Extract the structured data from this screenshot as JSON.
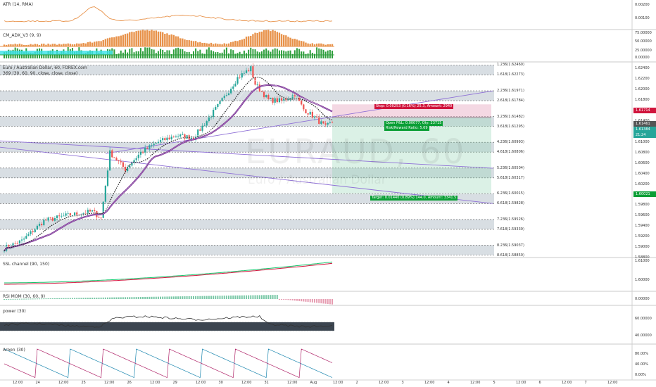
{
  "panels": {
    "atr": {
      "title": "ATR (14, RMA)",
      "ticks": [
        "0.00200",
        "0.00100"
      ]
    },
    "adx": {
      "title": "CM_ADX_V3 (9, 9)",
      "ticks": [
        "75.00000",
        "50.00000",
        "25.00000",
        "0.00000"
      ]
    },
    "ssl": {
      "title": "SSL channel (90, 150)",
      "ticks": [
        "1.61000",
        "1.60000"
      ]
    },
    "rsi": {
      "title": "RSI MOM (30, 60, 9)",
      "ticks": [
        "0.00000"
      ]
    },
    "power": {
      "title": "power (30)",
      "ticks": [
        "60.00000",
        "40.00000"
      ]
    },
    "aroon": {
      "title": "Aroon (30)",
      "ticks": [
        "80.00%",
        "40.00%",
        "0.00%"
      ]
    }
  },
  "main": {
    "title": "Euro / Australian Dollar, 60, FOREX.com",
    "indicator": "369 (30, 60, 90, close, close, close)",
    "watermark_symbol": "EURAUD, 60",
    "watermark_name": "Euro / Australian Dollar",
    "price_ticks": [
      "1.62400",
      "1.62200",
      "1.62000",
      "1.61800",
      "1.61600",
      "1.61400",
      "1.61200",
      "1.61000",
      "1.60800",
      "1.60600",
      "1.60400",
      "1.60200",
      "1.60000",
      "1.59800",
      "1.59600",
      "1.59400",
      "1.59200",
      "1.59000",
      "1.58800"
    ],
    "levels": [
      "1.236(1.62460)",
      "1.618(1.62273)",
      "2.236(1.61971)",
      "2.618(1.61784)",
      "3.236(1.61482)",
      "3.618(1.61295)",
      "4.236(1.60993)",
      "4.618(1.60806)",
      "5.236(1.60504)",
      "5.618(1.60317)",
      "6.236(1.60015)",
      "6.618(1.59828)",
      "7.236(1.59526)",
      "7.618(1.59339)",
      "8.236(1.59037)",
      "8.618(1.58850)"
    ],
    "stop_text": "Stop: 0.00253 (0.16%) 25.3, Amount: 2940",
    "open_text": "Open P&L: 0.00077, Qty: 23715",
    "rr_text": "Risk/Reward Ratio: 5.69",
    "target_text": "Target: 0.01440 (0.89%) 144.0, Amount: 3341.5",
    "badge_stop": "1.61714",
    "badge_entry": "1.61461",
    "badge_price": "1.61384",
    "badge_time": "21:24",
    "badge_target": "1.60021"
  },
  "time_labels": [
    "12:00",
    "24",
    "12:00",
    "25",
    "12:00",
    "26",
    "12:00",
    "29",
    "12:00",
    "30",
    "12:00",
    "31",
    "12:00",
    "Aug",
    "12:00",
    "2",
    "12:00",
    "3",
    "12:00",
    "4",
    "12:00",
    "5",
    "12:00",
    "6",
    "12:00",
    "7",
    "12:00"
  ],
  "colors": {
    "up": "#26a69a",
    "down": "#ef5350",
    "ma": "#7b2d8e",
    "orange": "#e8924a",
    "green": "#2e9e3c",
    "target": "#0a9e35",
    "stop": "#d0143c",
    "purple_line": "#8e6fd6"
  }
}
